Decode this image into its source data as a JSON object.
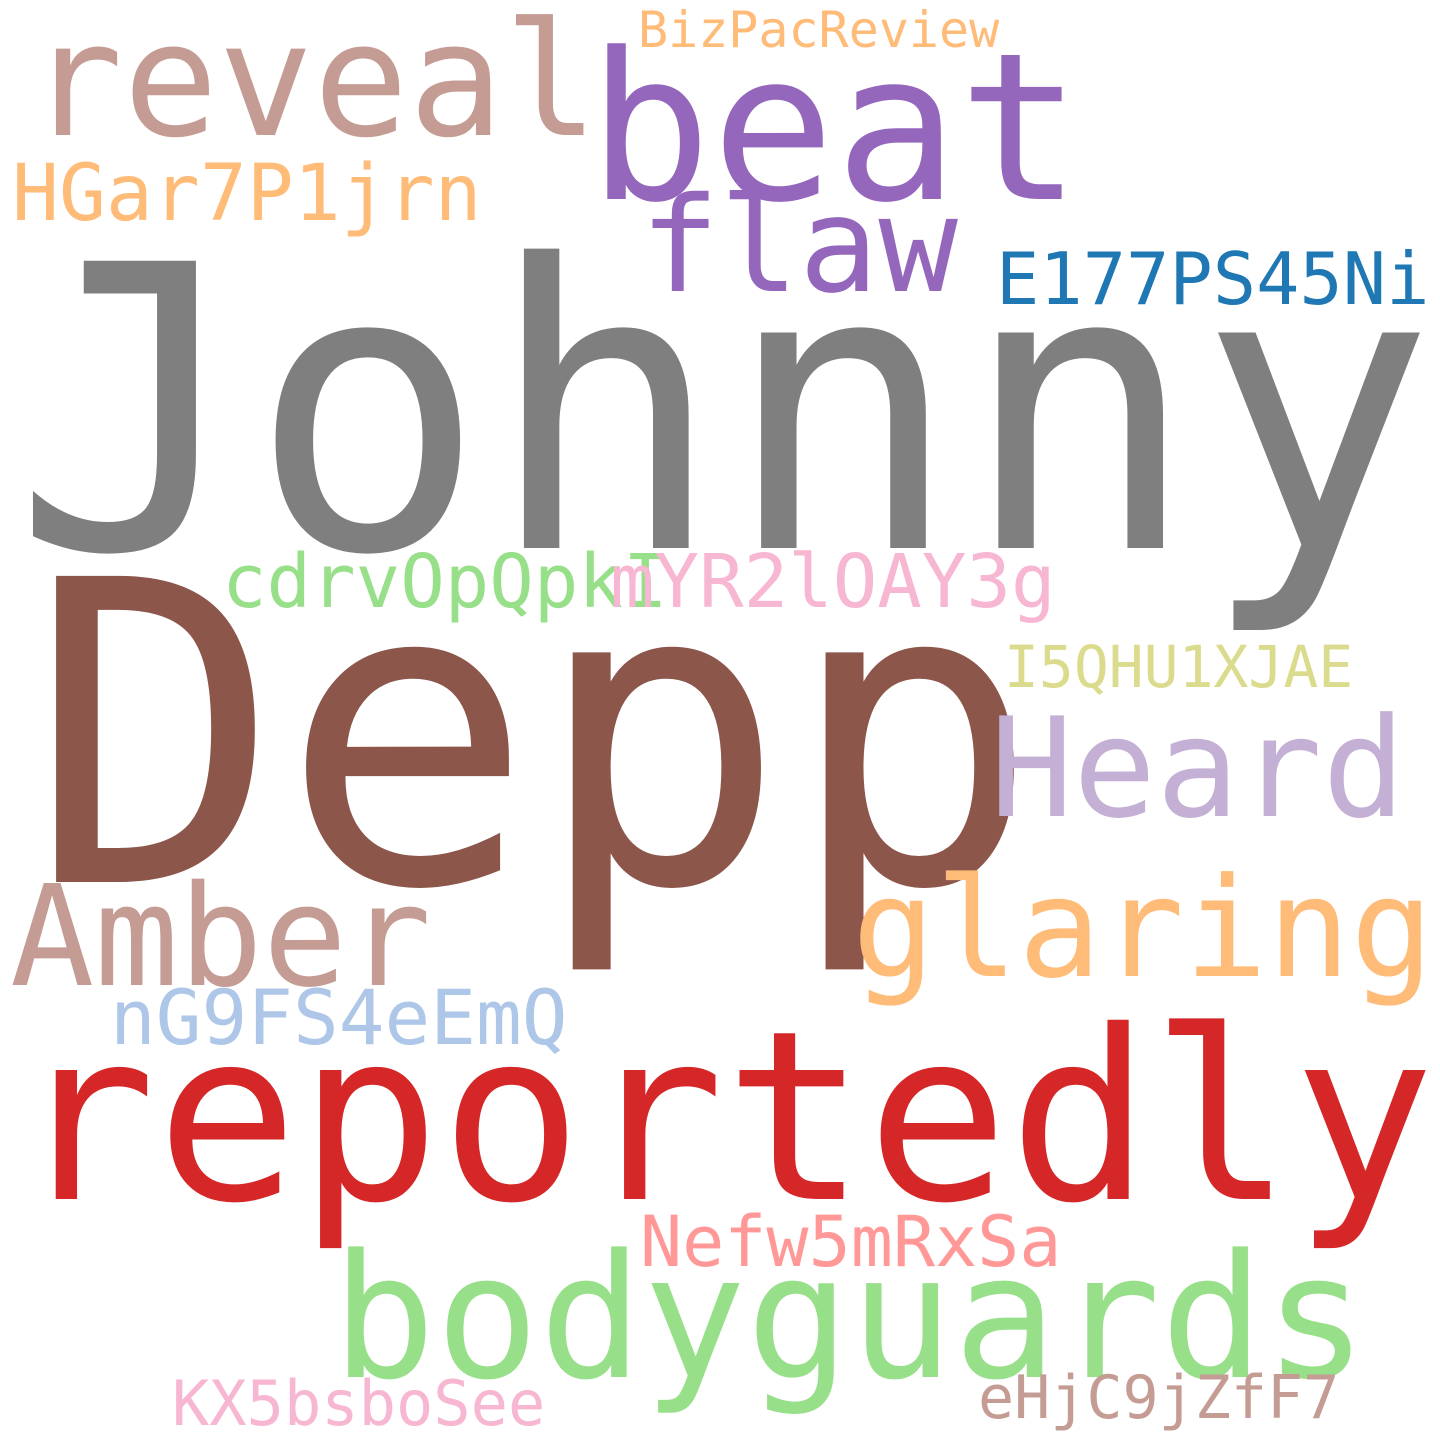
{
  "cloud": {
    "background": "#ffffff",
    "words": [
      {
        "key": "johnny",
        "text": "Johnny",
        "color": "#7f7f7f"
      },
      {
        "key": "depp",
        "text": "Depp",
        "color": "#8c564b"
      },
      {
        "key": "reportedly",
        "text": "reportedly",
        "color": "#d62728"
      },
      {
        "key": "beat",
        "text": "beat",
        "color": "#9467bd"
      },
      {
        "key": "reveal",
        "text": "reveal",
        "color": "#c49c94"
      },
      {
        "key": "bodyguards",
        "text": "bodyguards",
        "color": "#98df8a"
      },
      {
        "key": "glaring",
        "text": "glaring",
        "color": "#ffbb78"
      },
      {
        "key": "heard",
        "text": "Heard",
        "color": "#c5b0d5"
      },
      {
        "key": "amber",
        "text": "Amber",
        "color": "#c49c94"
      },
      {
        "key": "flaw",
        "text": "flaw",
        "color": "#9467bd"
      },
      {
        "key": "e177",
        "text": "E177PS45Ni",
        "color": "#1f77b4"
      },
      {
        "key": "hgar",
        "text": "HGar7P1jrn",
        "color": "#ffbb78"
      },
      {
        "key": "cdrv",
        "text": "cdrvOpQpkI",
        "color": "#98df8a"
      },
      {
        "key": "imyr",
        "text": "mYR2lOAY3g",
        "color": "#f7b6d2"
      },
      {
        "key": "i5q",
        "text": "I5QHU1XJAE",
        "color": "#dbdb8d"
      },
      {
        "key": "ng9",
        "text": "nG9FS4eEmQ",
        "color": "#aec7e8"
      },
      {
        "key": "nefw",
        "text": "Nefw5mRxSa",
        "color": "#ff9896"
      },
      {
        "key": "biz",
        "text": "BizPacReview",
        "color": "#ffbb78"
      },
      {
        "key": "kx5",
        "text": "KX5bsboSee",
        "color": "#f7b6d2"
      },
      {
        "key": "ehj",
        "text": "eHjC9jZfF7",
        "color": "#c49c94"
      }
    ]
  }
}
